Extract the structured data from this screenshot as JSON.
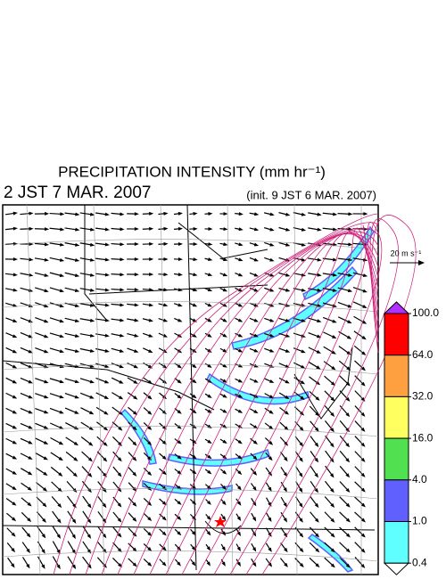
{
  "header": {
    "title": "PRECIPITATION INTENSITY (mm hr⁻¹)",
    "valid_time": "2 JST 7 MAR. 2007",
    "init_time": "(init. 9 JST 6 MAR. 2007)"
  },
  "legend": {
    "reference_vector": "20 m s⁻¹"
  },
  "colorbar": {
    "levels": [
      {
        "value": 100,
        "label": "100.0"
      },
      {
        "value": 64,
        "label": "64.0"
      },
      {
        "value": 32,
        "label": "32.0"
      },
      {
        "value": 16,
        "label": "16.0"
      },
      {
        "value": 4,
        "label": "4.0"
      },
      {
        "value": 1,
        "label": "1.0"
      },
      {
        "value": 0.4,
        "label": "0.4"
      }
    ],
    "colors": [
      "#ff0000",
      "#ffa040",
      "#ffff60",
      "#50e050",
      "#6060ff",
      "#60ffff"
    ],
    "over_color": "#b030ff",
    "under_color": "#ffffff"
  }
}
